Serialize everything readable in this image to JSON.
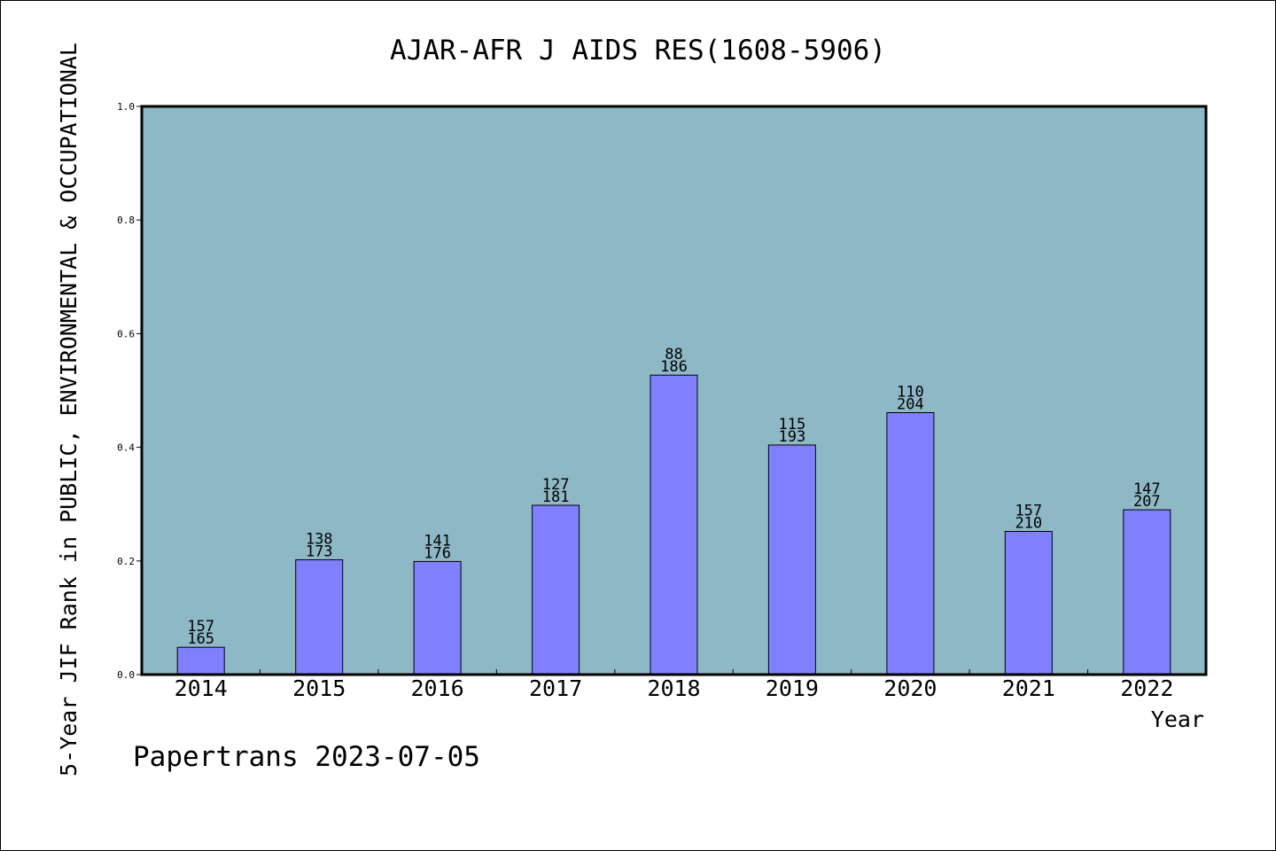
{
  "chart_data": {
    "type": "bar",
    "title": "AJAR-AFR J AIDS RES(1608-5906)",
    "xlabel": "Year",
    "ylabel": "5-Year JIF Rank in PUBLIC, ENVIRONMENTAL & OCCUPATIONAL",
    "ylim": [
      0,
      1.0
    ],
    "yticks": [
      "0.0",
      "0.2",
      "0.4",
      "0.6",
      "0.8",
      "1.0"
    ],
    "grid": false,
    "categories": [
      "2014",
      "2015",
      "2016",
      "2017",
      "2018",
      "2019",
      "2020",
      "2021",
      "2022"
    ],
    "series": [
      {
        "values": [
          0.048,
          0.202,
          0.199,
          0.298,
          0.527,
          0.404,
          0.461,
          0.252,
          0.29
        ],
        "rank": [
          "157",
          "138",
          "141",
          "127",
          "88",
          "115",
          "110",
          "157",
          "147"
        ],
        "total": [
          "165",
          "173",
          "176",
          "181",
          "186",
          "193",
          "204",
          "210",
          "207"
        ]
      }
    ],
    "colors": {
      "plot_bg": "#8fb8c6",
      "bar": "#8080ff",
      "bar_edge": "#000000"
    }
  },
  "footer": {
    "credit": "Papertrans 2023-07-05"
  }
}
